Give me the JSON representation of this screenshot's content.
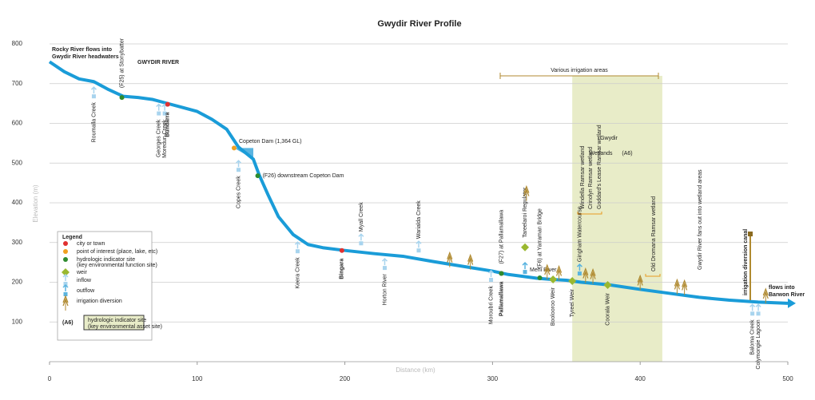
{
  "chart_data": {
    "type": "line",
    "title": "Gwydir River Profile",
    "x_label": "Distance (km)",
    "y_label": "Elevation (m)",
    "xlim": [
      0,
      500
    ],
    "ylim": [
      0,
      800
    ],
    "xticks": [
      0,
      100,
      200,
      300,
      400,
      500
    ],
    "yticks": [
      100,
      200,
      300,
      400,
      500,
      600,
      700,
      800
    ],
    "grid": true,
    "color": "#1a9cd8",
    "x": [
      0,
      10,
      20,
      30,
      40,
      50,
      60,
      70,
      80,
      90,
      100,
      110,
      120,
      128,
      138,
      142,
      148,
      155,
      165,
      175,
      185,
      200,
      220,
      240,
      260,
      280,
      300,
      310,
      320,
      330,
      340,
      350,
      360,
      380,
      400,
      420,
      440,
      460,
      480,
      500
    ],
    "values": [
      755,
      730,
      712,
      705,
      685,
      668,
      665,
      660,
      650,
      640,
      630,
      610,
      585,
      540,
      510,
      470,
      420,
      365,
      320,
      295,
      287,
      280,
      272,
      265,
      252,
      240,
      228,
      220,
      215,
      210,
      207,
      205,
      200,
      193,
      182,
      172,
      162,
      155,
      150,
      147
    ],
    "wetland_range": [
      354,
      415
    ],
    "features": [
      {
        "kind": "inflow",
        "label": "Roumalla Creek",
        "x": 30,
        "y": 673
      },
      {
        "kind": "inflow",
        "label": "Georges Creek",
        "x": 74,
        "y": 630
      },
      {
        "kind": "inflow",
        "label": "Moredun Creek",
        "x": 78,
        "y": 630
      },
      {
        "kind": "inflow",
        "label": "Copes Creek",
        "x": 128,
        "y": 488
      },
      {
        "kind": "inflow",
        "label": "Keera Creek",
        "x": 168,
        "y": 283
      },
      {
        "kind": "inflow-up",
        "label": "Myall Creek",
        "x": 211,
        "y": 303
      },
      {
        "kind": "inflow",
        "label": "Horton River",
        "x": 227,
        "y": 241
      },
      {
        "kind": "inflow-up",
        "label": "Warialda Creek",
        "x": 250,
        "y": 285
      },
      {
        "kind": "inflow",
        "label": "Moroubri Creek",
        "x": 299,
        "y": 211
      },
      {
        "kind": "inflow",
        "label": "Baloma Creek",
        "x": 476,
        "y": 126
      },
      {
        "kind": "inflow",
        "label": "Colymongie Lagoon",
        "x": 480,
        "y": 126
      },
      {
        "kind": "outflow",
        "label": "Mehi River",
        "x": 322,
        "y": 231
      },
      {
        "kind": "outflow-up",
        "label": "Gingham Watercourse",
        "x": 359,
        "y": 227
      },
      {
        "kind": "city",
        "label": "Bundarra",
        "x": 80,
        "y": 648
      },
      {
        "kind": "city",
        "label": "Bingara",
        "x": 198,
        "y": 280
      },
      {
        "kind": "city",
        "label": "Pallamallawa",
        "x": 306,
        "y": 222
      },
      {
        "kind": "poi",
        "label": "Copeton Dam (1,364 GL)",
        "x": 125,
        "y": 538
      },
      {
        "kind": "site-up",
        "label": "(F25) at Stonybatter",
        "x": 49,
        "y": 665
      },
      {
        "kind": "site",
        "label": "(F26) downstream Copeton Dam",
        "x": 141,
        "y": 468
      },
      {
        "kind": "site-up",
        "label": "(F27) at Pallamallawa",
        "x": 306,
        "y": 222
      },
      {
        "kind": "site-up",
        "label": "(F6) at Yarraman Bridge",
        "x": 332,
        "y": 211
      },
      {
        "kind": "weir-up",
        "label": "Tareelaroi Regulator",
        "x": 322,
        "y": 288
      },
      {
        "kind": "weir",
        "label": "Boolooroo Weir",
        "x": 341,
        "y": 207
      },
      {
        "kind": "weir",
        "label": "Tyreel Weir",
        "x": 354,
        "y": 203
      },
      {
        "kind": "weir",
        "label": "Coorala Weir",
        "x": 378,
        "y": 193
      },
      {
        "kind": "diversion",
        "label": null,
        "x": 271,
        "y": 258
      },
      {
        "kind": "diversion",
        "label": null,
        "x": 285,
        "y": 252
      },
      {
        "kind": "diversion",
        "label": null,
        "x": 323,
        "y": 425
      },
      {
        "kind": "diversion",
        "label": null,
        "x": 337,
        "y": 227
      },
      {
        "kind": "diversion",
        "label": null,
        "x": 345,
        "y": 224
      },
      {
        "kind": "diversion",
        "label": null,
        "x": 363,
        "y": 218
      },
      {
        "kind": "diversion",
        "label": null,
        "x": 368,
        "y": 216
      },
      {
        "kind": "diversion",
        "label": null,
        "x": 400,
        "y": 200
      },
      {
        "kind": "diversion",
        "label": null,
        "x": 425,
        "y": 190
      },
      {
        "kind": "diversion",
        "label": null,
        "x": 430,
        "y": 188
      },
      {
        "kind": "diversion",
        "label": null,
        "x": 485,
        "y": 167
      }
    ],
    "legend": [
      {
        "kind": "city",
        "label": "city or town"
      },
      {
        "kind": "poi",
        "label": "point of interest (place, lake, etc)"
      },
      {
        "kind": "site",
        "label": "hydrologic indicator site"
      },
      {
        "kind": "note",
        "label": "(key environmental function site)"
      },
      {
        "kind": "weir",
        "label": "weir"
      },
      {
        "kind": "inflow",
        "label": "inflow"
      },
      {
        "kind": "outflow",
        "label": "outflow"
      },
      {
        "kind": "diversion",
        "label": "irrigation diversion"
      }
    ],
    "legend_title": "Legend",
    "legend_box": {
      "tag": "(A6)",
      "label": "hydrologic indicator site",
      "note": "(key environmental asset site)"
    },
    "annotations": {
      "headwaters": [
        "Rocky River flows into",
        "Gwydir River headwaters"
      ],
      "river": "GWYDIR RIVER",
      "irrigation": "Various irrigation areas",
      "wetlands": [
        "Gwydir",
        "Wetlands",
        "(A6)"
      ],
      "barwon": [
        "flows into",
        "Barwon River"
      ],
      "ramsar": [
        "Windella Ramsar wetland",
        "Crinolyn Ramsar wetland",
        "Goddard's Lease Ramsar wetland"
      ],
      "old_dromana": "Old Dromana Ramsar wetland",
      "fans": "Gwydir River fans out into wetland areas",
      "canal": "irrigation diversion canal"
    }
  }
}
